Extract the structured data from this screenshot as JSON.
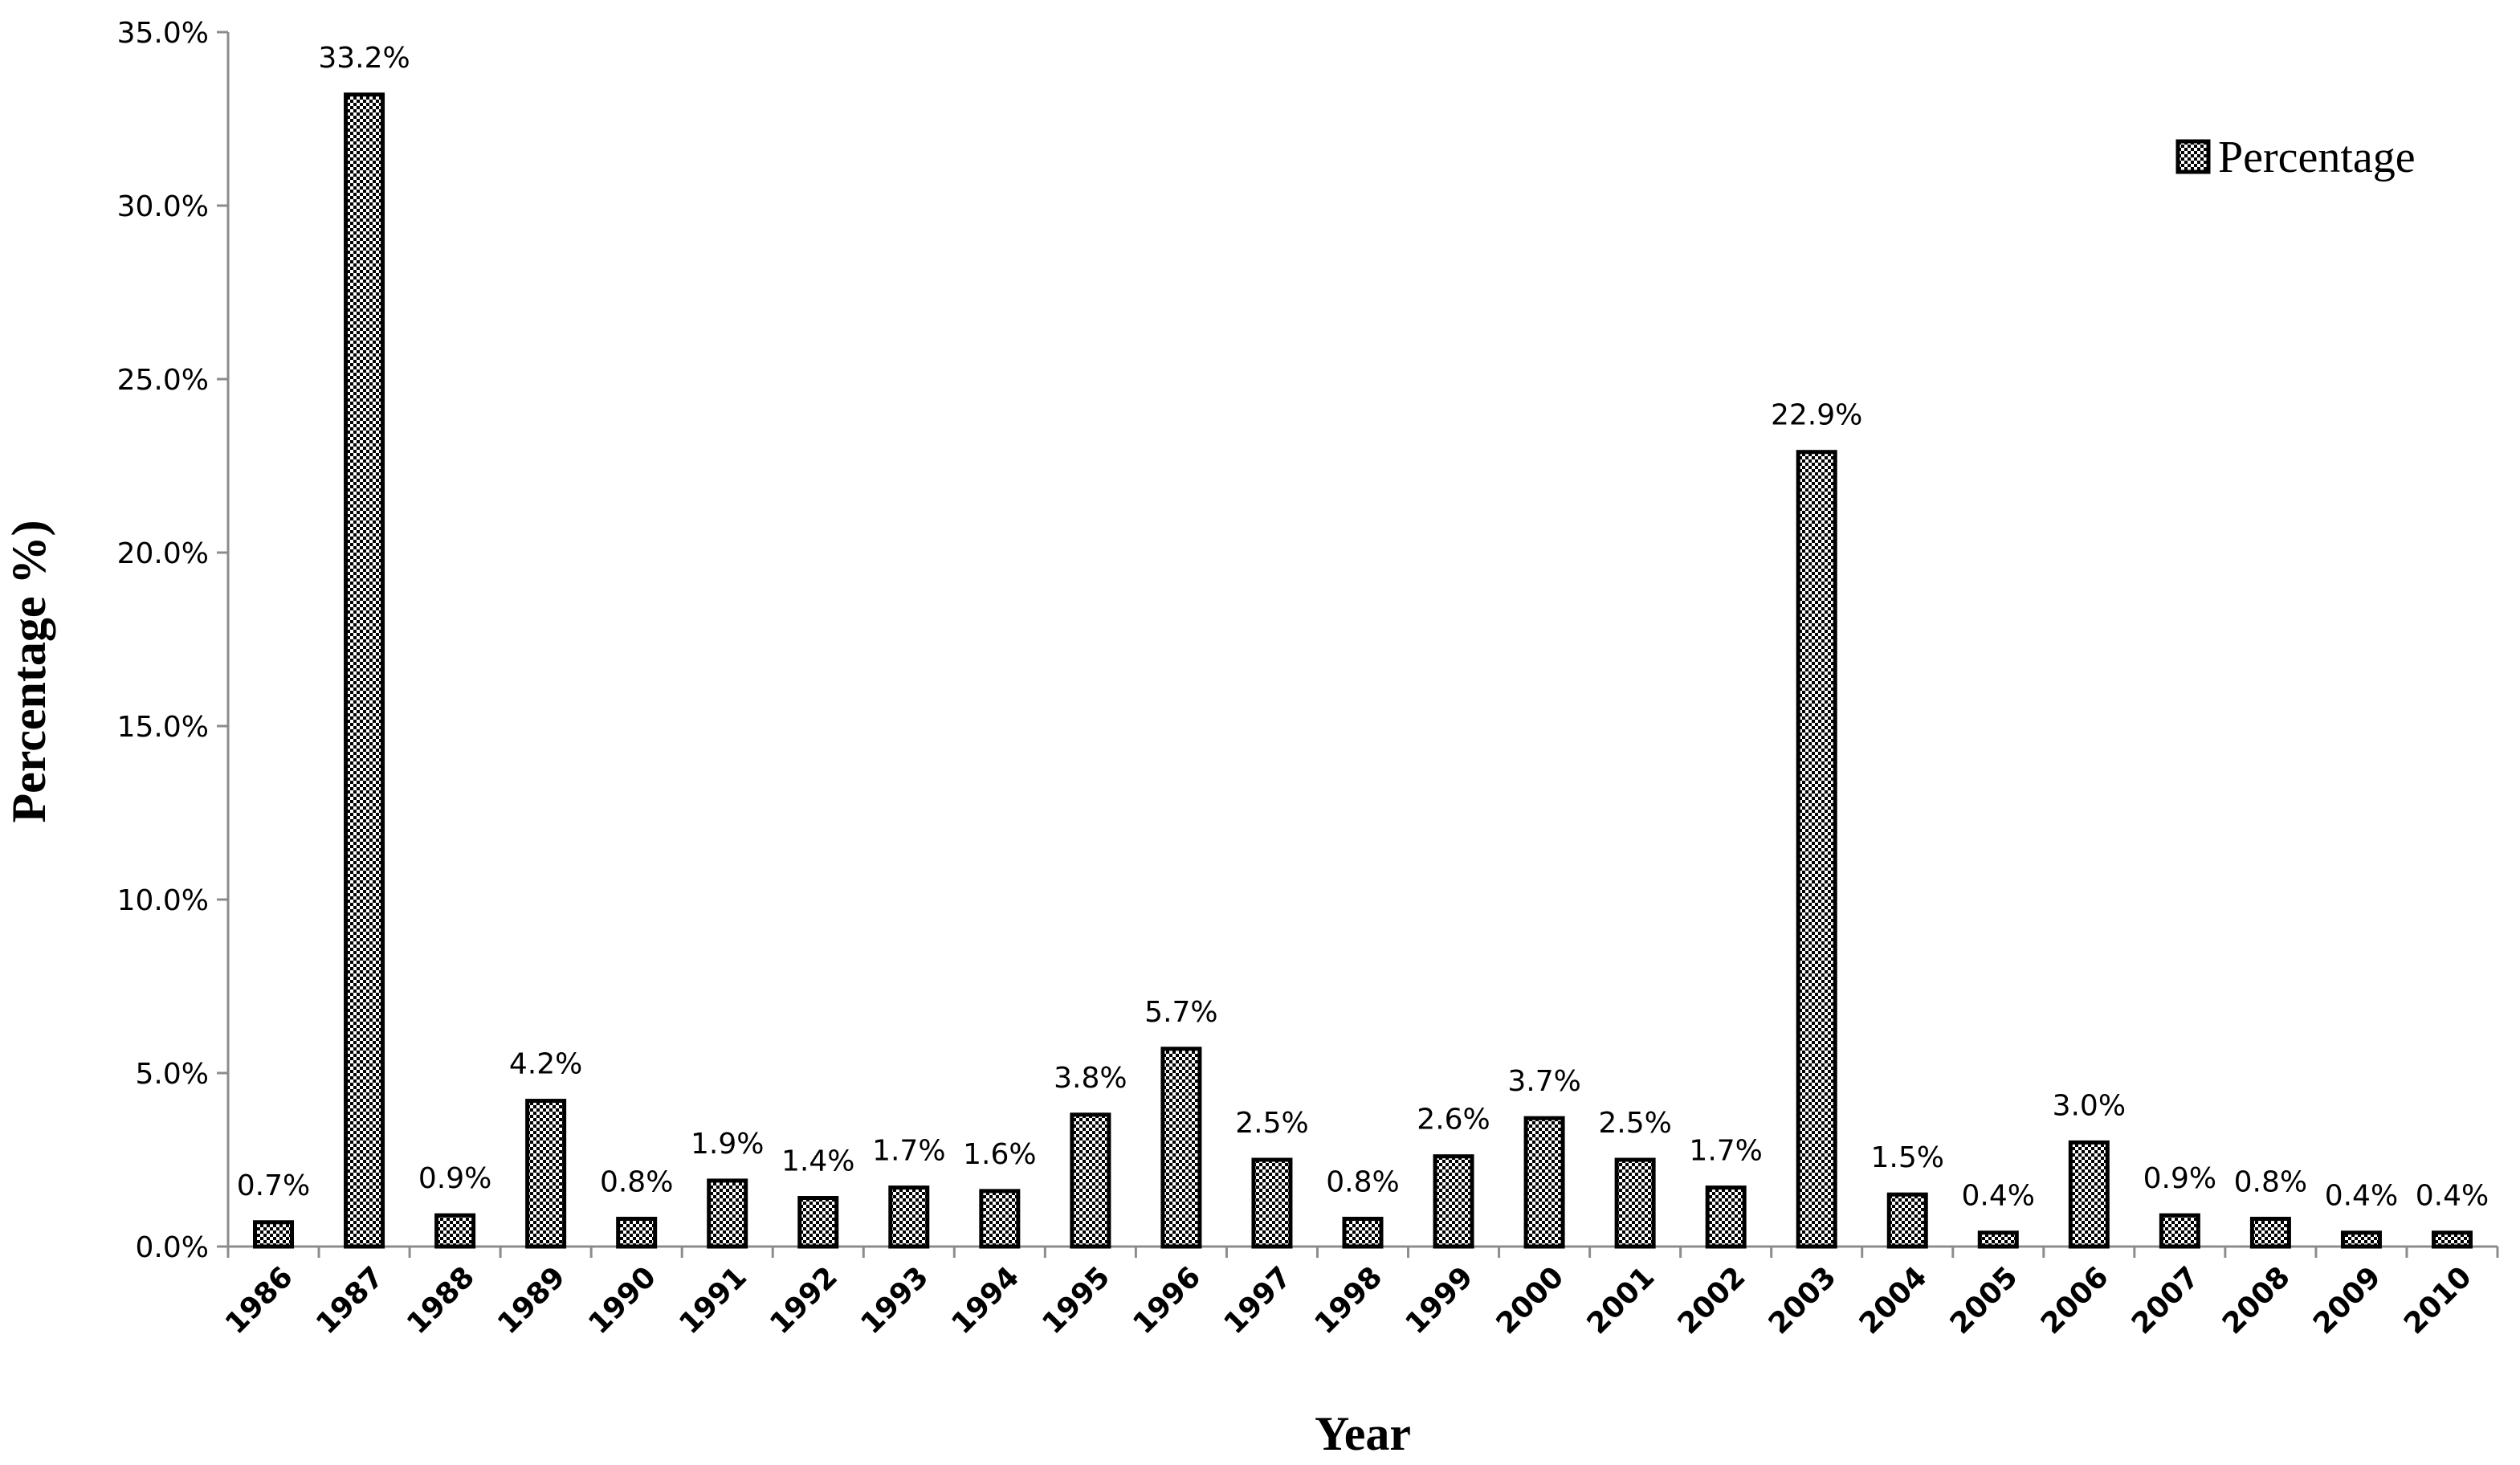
{
  "chart_data": {
    "type": "bar",
    "title": "",
    "xlabel": "Year",
    "ylabel": "Percentage %)",
    "ylim": [
      0,
      35
    ],
    "yticks": [
      "0.0%",
      "5.0%",
      "10.0%",
      "15.0%",
      "20.0%",
      "25.0%",
      "30.0%",
      "35.0%"
    ],
    "grid": false,
    "legend": {
      "position": "top-right"
    },
    "categories": [
      "1986",
      "1987",
      "1988",
      "1989",
      "1990",
      "1991",
      "1992",
      "1993",
      "1994",
      "1995",
      "1996",
      "1997",
      "1998",
      "1999",
      "2000",
      "2001",
      "2002",
      "2003",
      "2004",
      "2005",
      "2006",
      "2007",
      "2008",
      "2009",
      "2010"
    ],
    "series": [
      {
        "name": "Percentage",
        "values": [
          0.7,
          33.2,
          0.9,
          4.2,
          0.8,
          1.9,
          1.4,
          1.7,
          1.6,
          3.8,
          5.7,
          2.5,
          0.8,
          2.6,
          3.7,
          2.5,
          1.7,
          22.9,
          1.5,
          0.4,
          3.0,
          0.9,
          0.8,
          0.4,
          0.4
        ],
        "labels": [
          "0.7%",
          "33.2%",
          "0.9%",
          "4.2%",
          "0.8%",
          "1.9%",
          "1.4%",
          "1.7%",
          "1.6%",
          "3.8%",
          "5.7%",
          "2.5%",
          "0.8%",
          "2.6%",
          "3.7%",
          "2.5%",
          "1.7%",
          "22.9%",
          "1.5%",
          "0.4%",
          "3.0%",
          "0.9%",
          "0.8%",
          "0.4%",
          "0.4%"
        ],
        "fill": "checkered-pattern",
        "color": "#000000"
      }
    ]
  }
}
